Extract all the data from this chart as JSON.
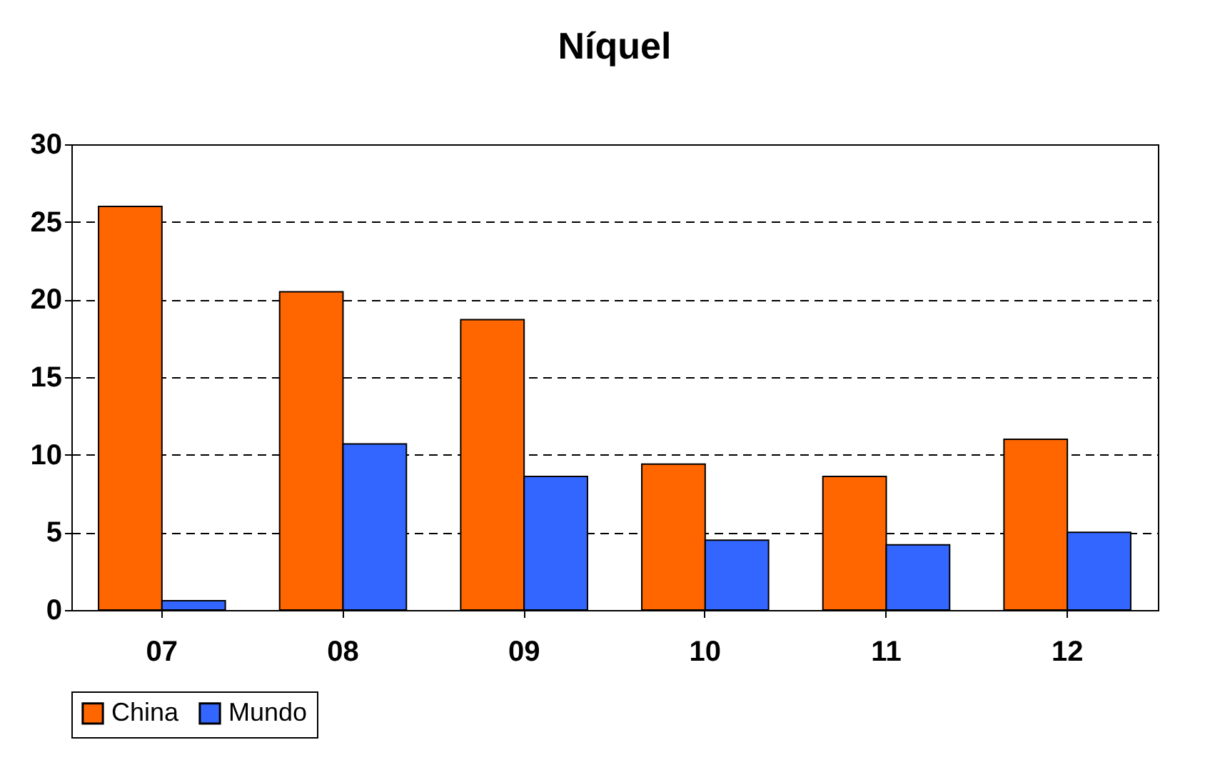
{
  "chart_data": {
    "type": "bar",
    "title": "Níquel",
    "categories": [
      "07",
      "08",
      "09",
      "10",
      "11",
      "12"
    ],
    "series": [
      {
        "name": "China",
        "color": "#ff6600",
        "values": [
          26,
          20.5,
          18.7,
          9.4,
          8.6,
          11.0
        ]
      },
      {
        "name": "Mundo",
        "color": "#3366ff",
        "values": [
          0.6,
          10.7,
          8.6,
          4.5,
          4.2,
          5.0
        ]
      }
    ],
    "ylim": [
      0,
      30
    ],
    "yticks": [
      0,
      5,
      10,
      15,
      20,
      25,
      30
    ],
    "grid": "y",
    "legend": "bottom"
  }
}
